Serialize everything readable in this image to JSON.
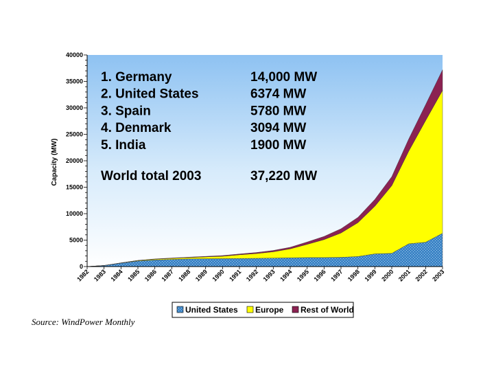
{
  "chart_data": {
    "type": "area",
    "stacked": true,
    "ylabel": "Capacity (MW)",
    "ylim": [
      0,
      40000
    ],
    "yticks": [
      0,
      5000,
      10000,
      15000,
      20000,
      25000,
      30000,
      35000,
      40000
    ],
    "categories": [
      "1982",
      "1983",
      "1984",
      "1985",
      "1986",
      "1987",
      "1988",
      "1989",
      "1990",
      "1991",
      "1992",
      "1993",
      "1994",
      "1995",
      "1996",
      "1997",
      "1998",
      "1999",
      "2000",
      "2001",
      "2002",
      "2003"
    ],
    "series": [
      {
        "name": "United States",
        "color": "#3d85c6",
        "values": [
          0,
          200,
          650,
          1050,
          1250,
          1350,
          1450,
          1480,
          1500,
          1530,
          1560,
          1600,
          1650,
          1700,
          1700,
          1750,
          1900,
          2400,
          2500,
          4300,
          4600,
          6300
        ]
      },
      {
        "name": "Europe",
        "color": "#ffff00",
        "values": [
          0,
          0,
          40,
          100,
          150,
          200,
          250,
          350,
          450,
          700,
          900,
          1200,
          1700,
          2500,
          3400,
          4600,
          6400,
          9000,
          12800,
          17500,
          23000,
          27000
        ]
      },
      {
        "name": "Rest of World",
        "color": "#8b2252",
        "values": [
          0,
          0,
          10,
          20,
          50,
          70,
          80,
          100,
          130,
          150,
          200,
          250,
          300,
          450,
          600,
          800,
          1000,
          1300,
          1700,
          2300,
          3000,
          3900
        ]
      }
    ],
    "legend": [
      "United States",
      "Europe",
      "Rest of World"
    ],
    "legend_position": "bottom",
    "rankings": [
      {
        "label": "1. Germany",
        "value": "14,000 MW"
      },
      {
        "label": "2. United States",
        "value": "6374 MW"
      },
      {
        "label": "3. Spain",
        "value": "5780 MW"
      },
      {
        "label": "4. Denmark",
        "value": "3094 MW"
      },
      {
        "label": "5. India",
        "value": "1900 MW"
      }
    ],
    "total": {
      "label": "World total 2003",
      "value": "37,220 MW"
    }
  },
  "source_note": "Source: WindPower Monthly"
}
